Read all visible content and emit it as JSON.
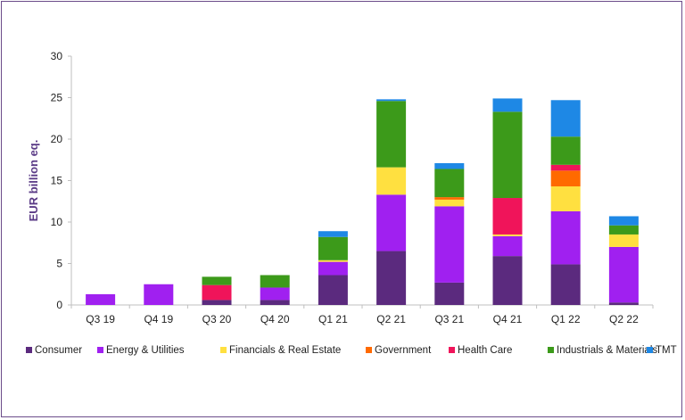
{
  "chart_data": {
    "type": "bar",
    "stacked": true,
    "ylabel": "EUR billion eq.",
    "ylim": [
      0,
      30
    ],
    "yticks": [
      0,
      5,
      10,
      15,
      20,
      25,
      30
    ],
    "grid": false,
    "legend_position": "bottom",
    "categories": [
      "Q3 19",
      "Q4 19",
      "Q3 20",
      "Q4 20",
      "Q1 21",
      "Q2 21",
      "Q3 21",
      "Q4 21",
      "Q1 22",
      "Q2 22"
    ],
    "series": [
      {
        "name": "Consumer",
        "color": "#5b2a7e",
        "values": [
          0,
          0,
          0.6,
          0.6,
          3.6,
          6.5,
          2.7,
          5.9,
          4.9,
          0.3
        ]
      },
      {
        "name": "Energy & Utilities",
        "color": "#a020f0",
        "values": [
          1.3,
          2.5,
          0,
          1.5,
          1.6,
          6.8,
          9.2,
          2.4,
          6.4,
          6.7
        ]
      },
      {
        "name": "Financials & Real Estate",
        "color": "#ffe040",
        "values": [
          0,
          0,
          0,
          0,
          0.2,
          3.3,
          0.8,
          0.2,
          3.0,
          1.5
        ]
      },
      {
        "name": "Government",
        "color": "#ff6a00",
        "values": [
          0,
          0,
          0,
          0,
          0,
          0,
          0.3,
          0,
          1.9,
          0
        ]
      },
      {
        "name": "Health Care",
        "color": "#f0145a",
        "values": [
          0,
          0,
          1.8,
          0,
          0,
          0,
          0,
          4.4,
          0.7,
          0
        ]
      },
      {
        "name": "Industrials & Materials",
        "color": "#3c9a1a",
        "values": [
          0,
          0,
          1.0,
          1.5,
          2.8,
          8.0,
          3.4,
          10.4,
          3.4,
          1.1
        ]
      },
      {
        "name": "TMT",
        "color": "#1e88e5",
        "values": [
          0,
          0,
          0,
          0,
          0.7,
          0.2,
          0.7,
          1.6,
          4.4,
          1.1
        ]
      }
    ]
  }
}
